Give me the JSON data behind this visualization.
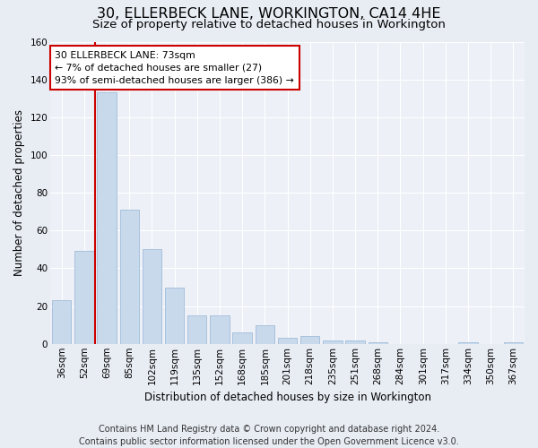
{
  "title": "30, ELLERBECK LANE, WORKINGTON, CA14 4HE",
  "subtitle": "Size of property relative to detached houses in Workington",
  "xlabel": "Distribution of detached houses by size in Workington",
  "ylabel": "Number of detached properties",
  "categories": [
    "36sqm",
    "52sqm",
    "69sqm",
    "85sqm",
    "102sqm",
    "119sqm",
    "135sqm",
    "152sqm",
    "168sqm",
    "185sqm",
    "201sqm",
    "218sqm",
    "235sqm",
    "251sqm",
    "268sqm",
    "284sqm",
    "301sqm",
    "317sqm",
    "334sqm",
    "350sqm",
    "367sqm"
  ],
  "values": [
    23,
    49,
    133,
    71,
    50,
    30,
    15,
    15,
    6,
    10,
    3,
    4,
    2,
    2,
    1,
    0,
    0,
    0,
    1,
    0,
    1
  ],
  "bar_color": "#c8d9ec",
  "bar_edge_color": "#a0bcd8",
  "vline_x_index": 1.5,
  "vline_color": "#cc0000",
  "annotation_text": "30 ELLERBECK LANE: 73sqm\n← 7% of detached houses are smaller (27)\n93% of semi-detached houses are larger (386) →",
  "annotation_box_color": "#ffffff",
  "annotation_box_edge_color": "#cc0000",
  "ylim": [
    0,
    160
  ],
  "yticks": [
    0,
    20,
    40,
    60,
    80,
    100,
    120,
    140,
    160
  ],
  "footer_text": "Contains HM Land Registry data © Crown copyright and database right 2024.\nContains public sector information licensed under the Open Government Licence v3.0.",
  "background_color": "#e8edf4",
  "plot_background_color": "#edf1f7",
  "title_fontsize": 11.5,
  "subtitle_fontsize": 9.5,
  "axis_label_fontsize": 8.5,
  "tick_fontsize": 7.5,
  "footer_fontsize": 7.0
}
